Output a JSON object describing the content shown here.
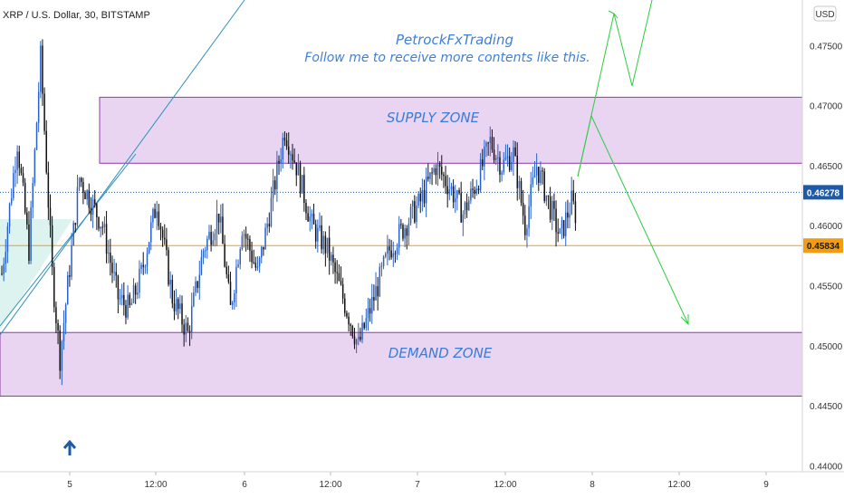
{
  "chart_data": {
    "type": "candlestick",
    "title": "XRP / U.S. Dollar, 30, BITSTAMP",
    "currency": "USD",
    "ylim": [
      0.4395,
      0.4788
    ],
    "y_ticks": [
      "0.47500",
      "0.47000",
      "0.46500",
      "0.46000",
      "0.45500",
      "0.45000",
      "0.44500",
      "0.44000"
    ],
    "y_tick_values": [
      0.475,
      0.47,
      0.465,
      0.46,
      0.455,
      0.45,
      0.445,
      0.44
    ],
    "x_ticks": [
      "5",
      "12:00",
      "6",
      "12:00",
      "7",
      "12:00",
      "8",
      "12:00",
      "9"
    ],
    "annotation": {
      "line1": "PetrockFxTrading",
      "line2": "Follow me to receive more contents like this."
    },
    "zones": [
      {
        "name": "SUPPLY ZONE",
        "top": 0.4707,
        "bottom": 0.4652
      },
      {
        "name": "DEMAND ZONE",
        "top": 0.4511,
        "bottom": 0.4458
      }
    ],
    "levels": [
      {
        "label": "0.46278",
        "value": 0.46278,
        "color": "#1e5aa8",
        "style": "dotted"
      },
      {
        "label": "0.45834",
        "value": 0.45834,
        "color": "#f39c12",
        "style": "solid"
      }
    ],
    "colors": {
      "bull": "#2a62c9",
      "bear": "#111111",
      "zone_fill": "#e9d5f2",
      "zone_border": "#8e3aa8",
      "projection": "#2ecc40",
      "trendline": "#2c8fb8"
    },
    "bias": [
      "bullish projection",
      "bearish projection"
    ],
    "arrow_icon": "arrow-up-icon"
  }
}
